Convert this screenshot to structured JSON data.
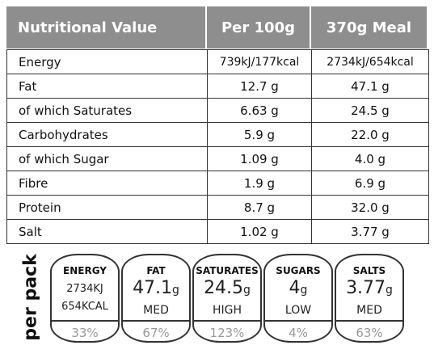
{
  "table": {
    "header": [
      "Nutritional Value",
      "Per 100g",
      "370g Meal"
    ],
    "rows": [
      [
        "Energy",
        "739kJ/177kcal",
        "2734kJ/654kcal"
      ],
      [
        "Fat",
        "12.7 g",
        "47.1 g"
      ],
      [
        "of which Saturates",
        "6.63 g",
        "24.5 g"
      ],
      [
        "Carbohydrates",
        "5.9 g",
        "22.0 g"
      ],
      [
        "of which Sugar",
        "1.09 g",
        "4.0 g"
      ],
      [
        "Fibre",
        "1.9 g",
        "6.9 g"
      ],
      [
        "Protein",
        "8.7 g",
        "32.0 g"
      ],
      [
        "Salt",
        "1.02 g",
        "3.77 g"
      ]
    ]
  },
  "per_pack": {
    "label": "per pack",
    "badges": [
      {
        "name": "ENERGY",
        "lines": [
          "2734KJ",
          "654KCAL"
        ],
        "percent": "33%"
      },
      {
        "name": "FAT",
        "amount": "47.1",
        "unit": "g",
        "level": "MED",
        "percent": "67%"
      },
      {
        "name": "SATURATES",
        "amount": "24.5",
        "unit": "g",
        "level": "HIGH",
        "percent": "123%"
      },
      {
        "name": "SUGARS",
        "amount": "4",
        "unit": "g",
        "level": "LOW",
        "percent": "4%"
      },
      {
        "name": "SALTS",
        "amount": "3.77",
        "unit": "g",
        "level": "MED",
        "percent": "63%"
      }
    ]
  }
}
